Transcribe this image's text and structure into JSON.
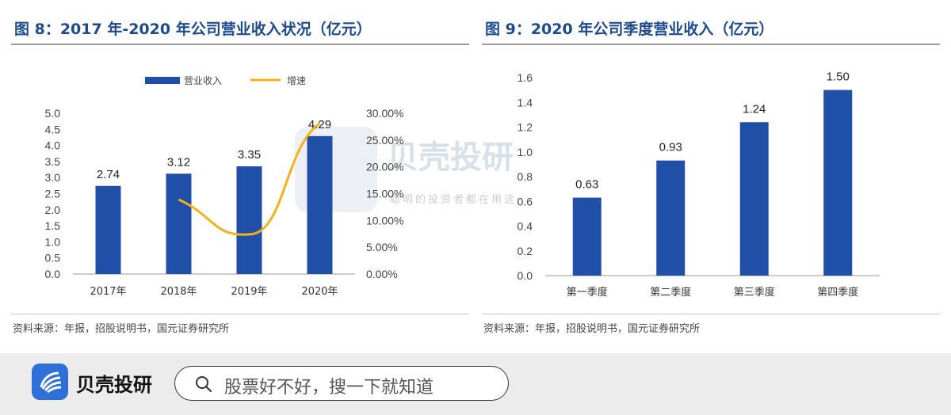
{
  "left_figure": {
    "title": "图 8：2017 年-2020 年公司营业收入状况（亿元）",
    "source": "资料来源：年报，招股说明书，国元证券研究所"
  },
  "right_figure": {
    "title": "图 9：2020 年公司季度营业收入（亿元）",
    "source": "资料来源：年报，招股说明书，国元证券研究所"
  },
  "watermark": {
    "brand": "贝壳投研",
    "slogan": "聪明的投资者都在用这"
  },
  "bottom_bar": {
    "brand": "贝壳投研",
    "search_placeholder": "股票好不好，搜一下就知道"
  },
  "colors": {
    "bar": "#1f4fa6",
    "line": "#f2b31a",
    "title": "#1c4a8a"
  },
  "chart_data": [
    {
      "type": "bar",
      "categories": [
        "2017年",
        "2018年",
        "2019年",
        "2020年"
      ],
      "series": [
        {
          "name": "营业收入",
          "values": [
            2.74,
            3.12,
            3.35,
            4.29
          ],
          "axis": "left",
          "type": "bar"
        },
        {
          "name": "增速",
          "values": [
            null,
            13.9,
            7.4,
            28.1
          ],
          "axis": "right",
          "type": "line"
        }
      ],
      "data_labels": [
        "2.74",
        "3.12",
        "3.35",
        "4.29"
      ],
      "ylim": [
        0,
        5
      ],
      "y_ticks": [
        "0.0",
        "0.5",
        "1.0",
        "1.5",
        "2.0",
        "2.5",
        "3.0",
        "3.5",
        "4.0",
        "4.5",
        "5.0"
      ],
      "y2lim": [
        0,
        30
      ],
      "y2_ticks": [
        "0.00%",
        "5.00%",
        "10.00%",
        "15.00%",
        "20.00%",
        "25.00%",
        "30.00%"
      ],
      "legend": "top",
      "grid": false
    },
    {
      "type": "bar",
      "categories": [
        "第一季度",
        "第二季度",
        "第三季度",
        "第四季度"
      ],
      "values": [
        0.63,
        0.93,
        1.24,
        1.5
      ],
      "data_labels": [
        "0.63",
        "0.93",
        "1.24",
        "1.50"
      ],
      "ylim": [
        0,
        1.6
      ],
      "y_ticks": [
        "0.0",
        "0.2",
        "0.4",
        "0.6",
        "0.8",
        "1.0",
        "1.2",
        "1.4",
        "1.6"
      ],
      "grid": false
    }
  ]
}
